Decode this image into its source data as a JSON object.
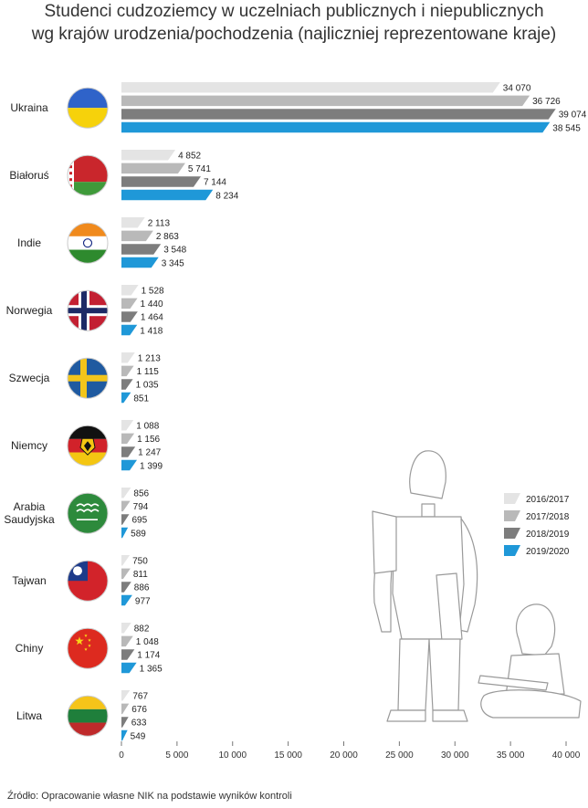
{
  "title_lines": [
    "Studenci cudzoziemcy w uczelniach publicznych i niepublicznych",
    "wg krajów urodzenia/pochodzenia (najliczniej reprezentowane kraje)"
  ],
  "source": "Źródło: Opracowanie własne NIK na podstawie wyników kontroli",
  "colors": {
    "2016/2017": "#e4e4e4",
    "2017/2018": "#b9b9b9",
    "2018/2019": "#7d7d7d",
    "2019/2020": "#1f98d8"
  },
  "flags": [
    {
      "country": "Ukraina",
      "icon": "flag-ukraine-icon"
    },
    {
      "country": "Białoruś",
      "icon": "flag-belarus-icon"
    },
    {
      "country": "Indie",
      "icon": "flag-india-icon"
    },
    {
      "country": "Norwegia",
      "icon": "flag-norway-icon"
    },
    {
      "country": "Szwecja",
      "icon": "flag-sweden-icon"
    },
    {
      "country": "Niemcy",
      "icon": "flag-germany-icon"
    },
    {
      "country": "Arabia Saudyjska",
      "icon": "flag-saudi-arabia-icon"
    },
    {
      "country": "Tajwan",
      "icon": "flag-taiwan-icon"
    },
    {
      "country": "Chiny",
      "icon": "flag-china-icon"
    },
    {
      "country": "Litwa",
      "icon": "flag-lithuania-icon"
    }
  ],
  "illustration": "students-illustration",
  "chart_data": {
    "type": "bar",
    "orientation": "horizontal",
    "categories": [
      "Ukraina",
      "Białoruś",
      "Indie",
      "Norwegia",
      "Szwecja",
      "Niemcy",
      "Arabia Saudyjska",
      "Tajwan",
      "Chiny",
      "Litwa"
    ],
    "category_display": [
      [
        "Ukraina"
      ],
      [
        "Białoruś"
      ],
      [
        "Indie"
      ],
      [
        "Norwegia"
      ],
      [
        "Szwecja"
      ],
      [
        "Niemcy"
      ],
      [
        "Arabia",
        "Saudyjska"
      ],
      [
        "Tajwan"
      ],
      [
        "Chiny"
      ],
      [
        "Litwa"
      ]
    ],
    "series": [
      {
        "name": "2016/2017",
        "values": [
          34070,
          4852,
          2113,
          1528,
          1213,
          1088,
          856,
          750,
          882,
          767
        ],
        "labels": [
          "34 070",
          "4 852",
          "2 113",
          "1 528",
          "1 213",
          "1 088",
          "856",
          "750",
          "882",
          "767"
        ]
      },
      {
        "name": "2017/2018",
        "values": [
          36726,
          5741,
          2863,
          1440,
          1115,
          1156,
          794,
          811,
          1048,
          676
        ],
        "labels": [
          "36 726",
          "5 741",
          "2 863",
          "1 440",
          "1 115",
          "1 156",
          "794",
          "811",
          "1 048",
          "676"
        ]
      },
      {
        "name": "2018/2019",
        "values": [
          39074,
          7144,
          3548,
          1464,
          1035,
          1247,
          695,
          886,
          1174,
          633
        ],
        "labels": [
          "39 074",
          "7 144",
          "3 548",
          "1 464",
          "1 035",
          "1 247",
          "695",
          "886",
          "1 174",
          "633"
        ]
      },
      {
        "name": "2019/2020",
        "values": [
          38545,
          8234,
          3345,
          1418,
          851,
          1399,
          589,
          977,
          1365,
          549
        ],
        "labels": [
          "38 545",
          "8 234",
          "3 345",
          "1 418",
          "851",
          "1 399",
          "589",
          "977",
          "1 365",
          "549"
        ]
      }
    ],
    "xlim": [
      0,
      40000
    ],
    "xticks": [
      0,
      5000,
      10000,
      15000,
      20000,
      25000,
      30000,
      35000,
      40000
    ],
    "xtick_labels": [
      "0",
      "5 000",
      "10 000",
      "15 000",
      "20 000",
      "25 000",
      "30 000",
      "35 000",
      "40 000"
    ],
    "legend": [
      "2016/2017",
      "2017/2018",
      "2018/2019",
      "2019/2020"
    ],
    "legend_position": "right",
    "grid": false
  }
}
